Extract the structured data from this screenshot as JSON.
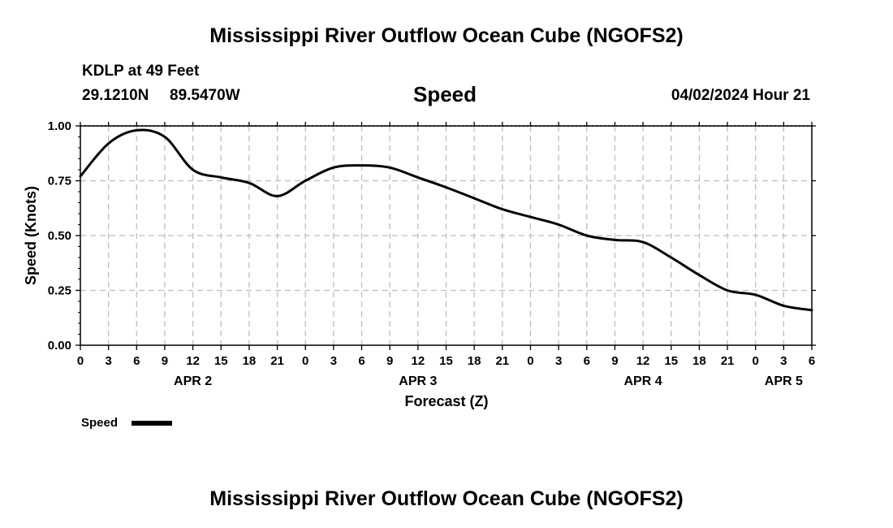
{
  "page_title": "Mississippi River Outflow Ocean Cube (NGOFS2)",
  "station": {
    "name": "KDLP at 49 Feet",
    "lat": "29.1210N",
    "lon": "89.5470W"
  },
  "variable_title": "Speed",
  "forecast_time": "04/02/2024 Hour 21",
  "footer_title": "Mississippi River Outflow Ocean Cube (NGOFS2)",
  "chart_data": {
    "type": "line",
    "title": "Speed",
    "xlabel": "Forecast (Z)",
    "ylabel": "Speed (Knots)",
    "ylim": [
      0,
      1.0
    ],
    "xlim_hours": [
      0,
      78
    ],
    "yticks": [
      "0.00",
      "0.25",
      "0.50",
      "0.75",
      "1.00"
    ],
    "yticks_values": [
      0,
      0.25,
      0.5,
      0.75,
      1.0
    ],
    "xtick_labels": [
      "0",
      "3",
      "6",
      "9",
      "12",
      "15",
      "18",
      "21",
      "0",
      "3",
      "6",
      "9",
      "12",
      "15",
      "18",
      "21",
      "0",
      "3",
      "6",
      "9",
      "12",
      "15",
      "18",
      "21",
      "0",
      "3",
      "6"
    ],
    "day_labels": [
      {
        "label": "APR 2",
        "hour": 12
      },
      {
        "label": "APR 3",
        "hour": 36
      },
      {
        "label": "APR 4",
        "hour": 60
      },
      {
        "label": "APR 5",
        "hour": 75
      }
    ],
    "grid": true,
    "legend": "bottom-left",
    "series": [
      {
        "name": "Speed",
        "x": [
          0,
          3,
          6,
          9,
          12,
          15,
          18,
          21,
          24,
          27,
          30,
          33,
          36,
          39,
          42,
          45,
          48,
          51,
          54,
          57,
          60,
          63,
          66,
          69,
          72,
          75,
          78
        ],
        "values": [
          0.77,
          0.92,
          0.98,
          0.95,
          0.8,
          0.765,
          0.74,
          0.68,
          0.75,
          0.81,
          0.82,
          0.81,
          0.765,
          0.72,
          0.67,
          0.62,
          0.585,
          0.55,
          0.5,
          0.48,
          0.47,
          0.4,
          0.32,
          0.25,
          0.23,
          0.18,
          0.16
        ]
      }
    ]
  }
}
